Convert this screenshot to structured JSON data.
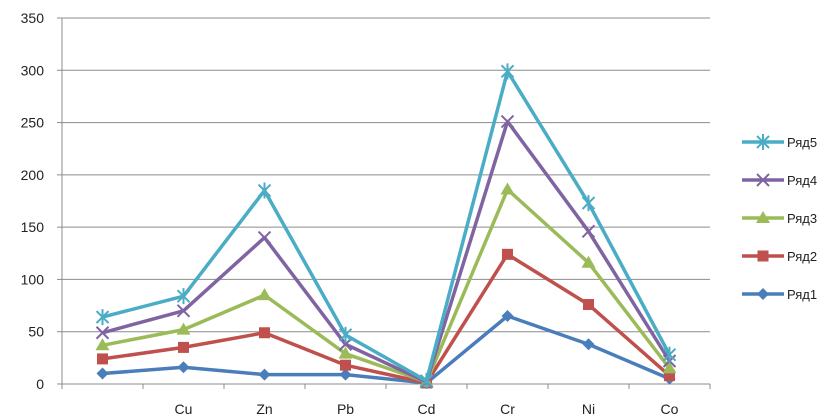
{
  "chart_data": {
    "type": "line",
    "title": "",
    "xlabel": "",
    "ylabel": "",
    "categories": [
      "",
      "Cu",
      "Zn",
      "Pb",
      "Cd",
      "Cr",
      "Ni",
      "Co"
    ],
    "ylim": [
      0,
      350
    ],
    "yticks": [
      0,
      50,
      100,
      150,
      200,
      250,
      300,
      350
    ],
    "grid": true,
    "legend_position": "right",
    "series": [
      {
        "name": "Ряд1",
        "color": "#4a7ebb",
        "marker": "diamond",
        "values": [
          10,
          16,
          9,
          9,
          1,
          65,
          38,
          5
        ]
      },
      {
        "name": "Ряд2",
        "color": "#c0504d",
        "marker": "square",
        "values": [
          24,
          35,
          49,
          18,
          1,
          124,
          76,
          8
        ]
      },
      {
        "name": "Ряд3",
        "color": "#9bbb59",
        "marker": "triangle",
        "values": [
          37,
          52,
          85,
          29,
          2,
          186,
          116,
          15
        ]
      },
      {
        "name": "Ряд4",
        "color": "#8064a2",
        "marker": "x",
        "values": [
          49,
          70,
          140,
          38,
          2,
          251,
          146,
          22
        ]
      },
      {
        "name": "Ряд5",
        "color": "#4bacc6",
        "marker": "star",
        "values": [
          64,
          84,
          185,
          47,
          3,
          299,
          173,
          28
        ]
      }
    ]
  }
}
